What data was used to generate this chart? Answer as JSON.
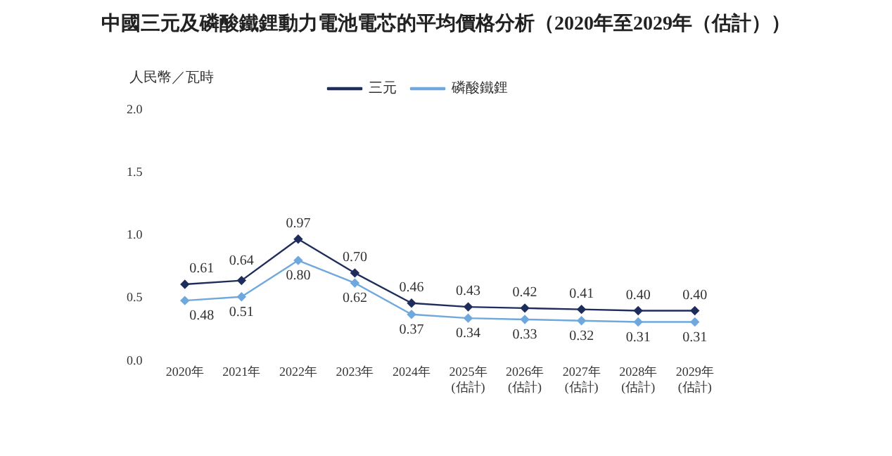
{
  "chart_data": {
    "type": "line",
    "title": "中國三元及磷酸鐵鋰動力電池電芯的平均價格分析（2020年至2029年（估計））",
    "ylabel": "人民幣／瓦時",
    "categories": [
      "2020年",
      "2021年",
      "2022年",
      "2023年",
      "2024年",
      "2025年\n(估計)",
      "2026年\n(估計)",
      "2027年\n(估計)",
      "2028年\n(估計)",
      "2029年\n(估計)"
    ],
    "series": [
      {
        "name": "三元",
        "color": "#1f2d5c",
        "values": [
          0.61,
          0.64,
          0.97,
          0.7,
          0.46,
          0.43,
          0.42,
          0.41,
          0.4,
          0.4
        ],
        "value_labels": [
          "0.61",
          "0.64",
          "0.97",
          "0.70",
          "0.46",
          "0.43",
          "0.42",
          "0.41",
          "0.40",
          "0.40"
        ]
      },
      {
        "name": "磷酸鐵鋰",
        "color": "#6fa8dc",
        "values": [
          0.48,
          0.51,
          0.8,
          0.62,
          0.37,
          0.34,
          0.33,
          0.32,
          0.31,
          0.31
        ],
        "value_labels": [
          "0.48",
          "0.51",
          "0.80",
          "0.62",
          "0.37",
          "0.34",
          "0.33",
          "0.32",
          "0.31",
          "0.31"
        ]
      }
    ],
    "ylim": [
      0,
      2
    ],
    "yticks": [
      {
        "value": 0,
        "label": "0.0"
      },
      {
        "value": 0.5,
        "label": "0.5"
      },
      {
        "value": 1,
        "label": "1.0"
      },
      {
        "value": 1.5,
        "label": "1.5"
      },
      {
        "value": 2,
        "label": "2.0"
      }
    ],
    "grid": false,
    "legend": "top",
    "marker": "diamond",
    "line_style": "solid"
  }
}
